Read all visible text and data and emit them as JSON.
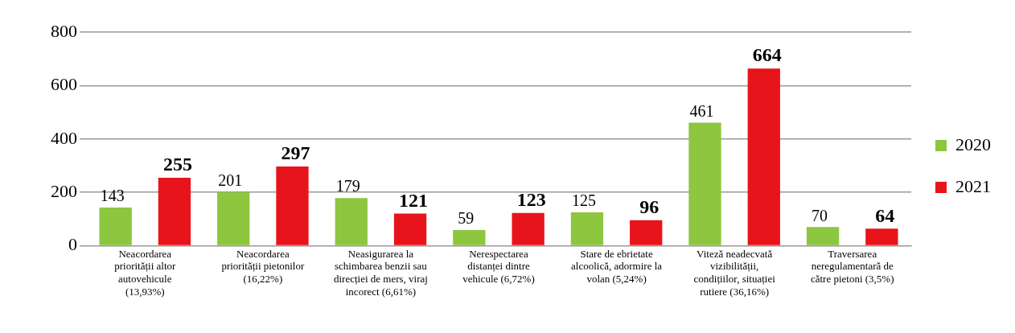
{
  "chart_data": {
    "type": "bar",
    "categories": [
      "Neacordarea priorității altor autovehicule (13,93%)",
      "Neacordarea priorității pietonilor (16,22%)",
      "Neasigurarea la schimbarea benzii sau direcției de mers, viraj incorect (6,61%)",
      "Nerespectarea distanței dintre vehicule (6,72%)",
      "Stare de ebrietate alcoolică, adormire la volan (5,24%)",
      "Viteză neadecvată vizibilității, condițiilor, situației rutiere (36,16%)",
      "Traversarea neregulamentară de către pietoni (3,5%)"
    ],
    "series": [
      {
        "name": "2020",
        "color": "#8dc63f",
        "values": [
          143,
          201,
          179,
          59,
          125,
          461,
          70
        ]
      },
      {
        "name": "2021",
        "color": "#e8141b",
        "values": [
          255,
          297,
          121,
          123,
          96,
          664,
          64
        ]
      }
    ],
    "ylim": [
      0,
      800
    ],
    "yticks": [
      0,
      200,
      400,
      600,
      800
    ],
    "grid": "y",
    "legend": "right",
    "data_labels": true
  }
}
